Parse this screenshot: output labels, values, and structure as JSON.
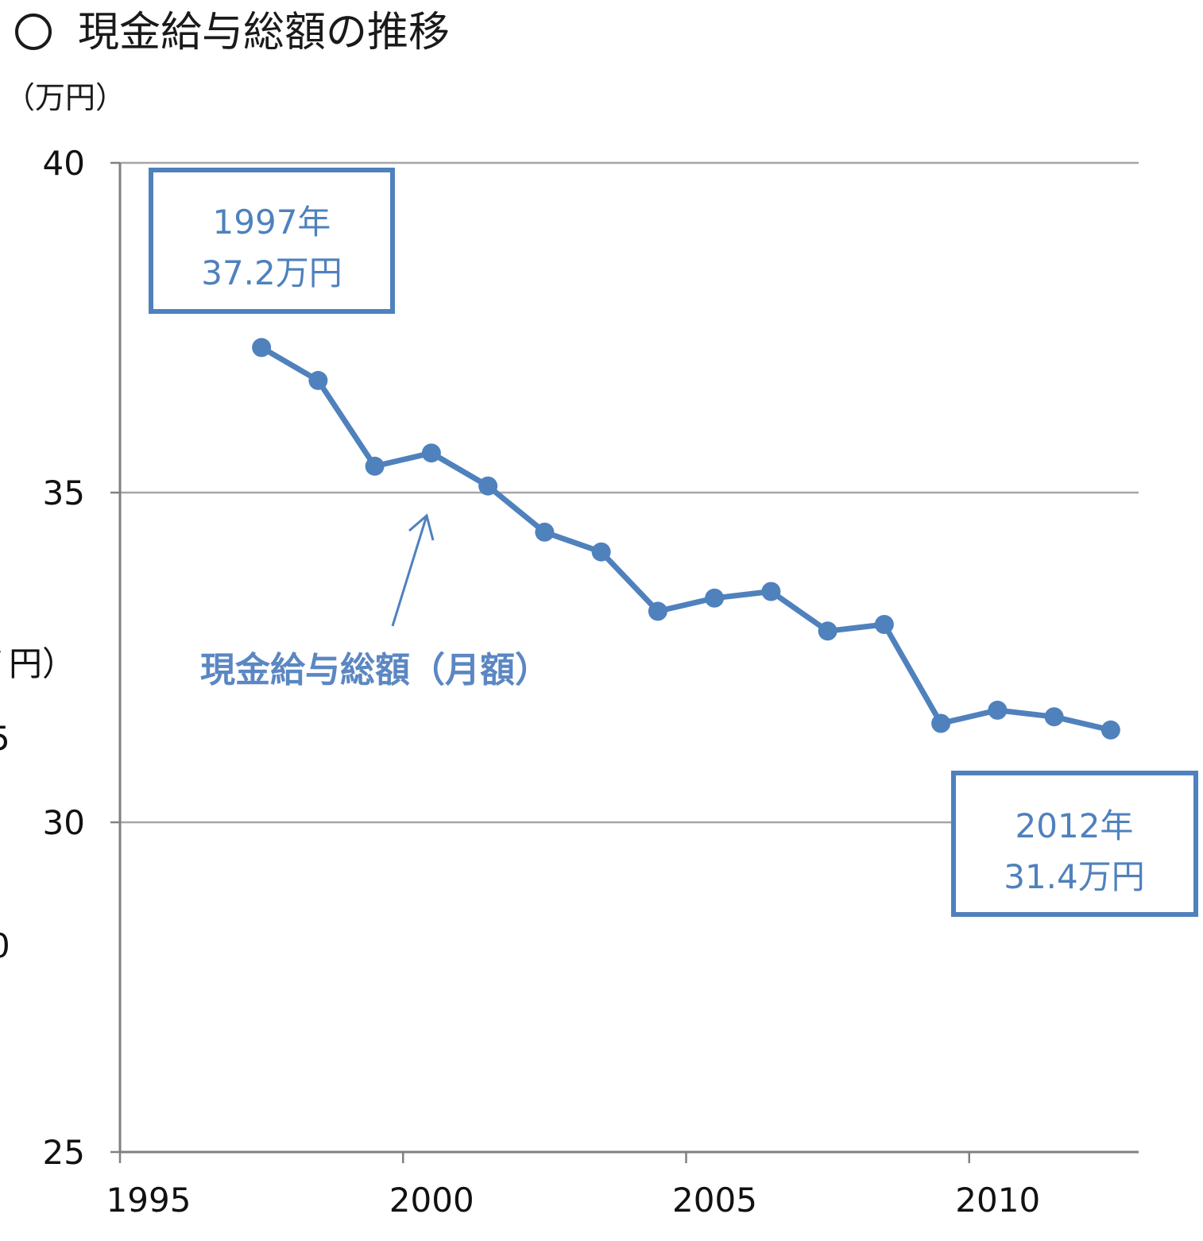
{
  "page": {
    "title": "現金給与総額の推移",
    "title_marker": "○",
    "unit": "（万円）",
    "ghost_labels": [
      "ﾞ円）",
      "5",
      "0"
    ]
  },
  "chart_data": {
    "type": "line",
    "title": "現金給与総額の推移",
    "ylabel": "（万円）",
    "xlabel": "",
    "xlim": [
      1995,
      2013
    ],
    "ylim": [
      25,
      40
    ],
    "x_ticks": [
      1995,
      2000,
      2005,
      2010
    ],
    "y_ticks": [
      25,
      30,
      35,
      40
    ],
    "grid": {
      "horizontal": true,
      "vertical": false
    },
    "series": [
      {
        "name": "現金給与総額（月額）",
        "color": "#4f81bd",
        "x": [
          1997,
          1998,
          1999,
          2000,
          2001,
          2002,
          2003,
          2004,
          2005,
          2006,
          2007,
          2008,
          2009,
          2010,
          2011,
          2012
        ],
        "y": [
          37.2,
          36.7,
          35.4,
          35.6,
          35.1,
          34.4,
          34.1,
          33.2,
          33.4,
          33.5,
          32.9,
          33.0,
          31.5,
          31.7,
          31.6,
          31.4
        ]
      }
    ],
    "annotations": [
      {
        "line1": "1997年",
        "line2": "37.2万円"
      },
      {
        "line1": "2012年",
        "line2": "31.4万円"
      }
    ],
    "colors": {
      "accent": "#4f81bd",
      "label": "#5b87c2",
      "grid": "#a6a6a6",
      "axis": "#808080"
    }
  }
}
